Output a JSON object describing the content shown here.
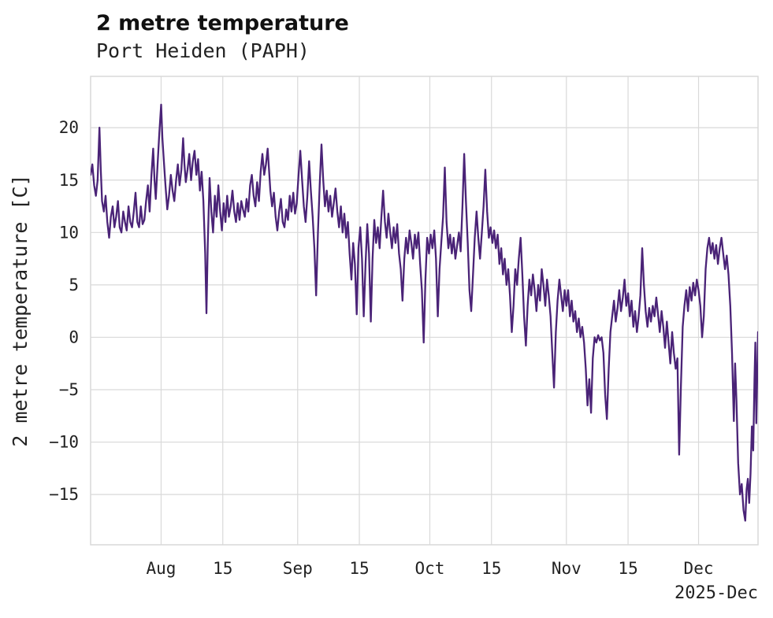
{
  "header": {
    "title": "2 metre temperature",
    "subtitle": "Port Heiden (PAPH)"
  },
  "chart_data": {
    "type": "line",
    "title": "2 metre temperature",
    "subtitle": "Port Heiden (PAPH)",
    "ylabel": "2 metre temperature [C]",
    "xlabel": "",
    "corner_label": "2025-Dec",
    "x_unit": "days since start of series (mid-July 2025)",
    "xlim": [
      0,
      151.5
    ],
    "ylim": [
      -19.8,
      24.9
    ],
    "grid": true,
    "legend": "none",
    "line_color": "#4a2377",
    "grid_color": "#d9d9d9",
    "text_color": "#222222",
    "yticks": [
      {
        "value": 20,
        "label": "20"
      },
      {
        "value": 15,
        "label": "15"
      },
      {
        "value": 10,
        "label": "10"
      },
      {
        "value": 5,
        "label": "5"
      },
      {
        "value": 0,
        "label": "0"
      },
      {
        "value": -5,
        "label": "−5"
      },
      {
        "value": -10,
        "label": "−10"
      },
      {
        "value": -15,
        "label": "−15"
      }
    ],
    "xticks": [
      {
        "value": 16,
        "label": "Aug"
      },
      {
        "value": 30,
        "label": "15"
      },
      {
        "value": 47,
        "label": "Sep"
      },
      {
        "value": 61,
        "label": "15"
      },
      {
        "value": 77,
        "label": "Oct"
      },
      {
        "value": 91,
        "label": "15"
      },
      {
        "value": 108,
        "label": "Nov"
      },
      {
        "value": 122,
        "label": "15"
      },
      {
        "value": 138,
        "label": "Dec"
      }
    ],
    "series": [
      {
        "name": "2 metre temperature [C]",
        "x": [
          0,
          0.4,
          0.8,
          1.2,
          1.6,
          2.0,
          2.3,
          2.6,
          3.0,
          3.4,
          3.8,
          4.2,
          4.6,
          5.0,
          5.4,
          5.8,
          6.2,
          6.6,
          7.0,
          7.4,
          7.8,
          8.2,
          8.6,
          9.0,
          9.4,
          9.8,
          10.2,
          10.6,
          11.0,
          11.4,
          11.8,
          12.2,
          12.6,
          13.0,
          13.4,
          13.8,
          14.2,
          14.5,
          14.8,
          15.2,
          15.6,
          16.0,
          16.3,
          16.6,
          17.0,
          17.4,
          17.8,
          18.2,
          18.6,
          19.0,
          19.4,
          19.8,
          20.2,
          20.6,
          21.0,
          21.3,
          21.6,
          22.0,
          22.4,
          22.8,
          23.2,
          23.6,
          24.0,
          24.4,
          24.8,
          25.2,
          25.6,
          26.0,
          26.3,
          26.6,
          27.0,
          27.4,
          27.8,
          28.2,
          28.6,
          29.0,
          29.4,
          29.8,
          30.2,
          30.6,
          31.0,
          31.4,
          31.8,
          32.2,
          32.6,
          33.0,
          33.4,
          33.8,
          34.2,
          34.6,
          35.0,
          35.4,
          35.8,
          36.2,
          36.6,
          37.0,
          37.4,
          37.8,
          38.2,
          38.6,
          39.0,
          39.4,
          39.8,
          40.2,
          40.5,
          40.8,
          41.2,
          41.6,
          42.0,
          42.4,
          42.8,
          43.2,
          43.6,
          44.0,
          44.4,
          44.8,
          45.2,
          45.6,
          46.0,
          46.4,
          46.8,
          47.2,
          47.6,
          48.0,
          48.4,
          48.8,
          49.2,
          49.6,
          50.0,
          50.4,
          50.8,
          51.2,
          51.6,
          52.0,
          52.4,
          52.8,
          53.2,
          53.6,
          54.0,
          54.4,
          54.8,
          55.2,
          55.6,
          56.0,
          56.4,
          56.8,
          57.2,
          57.6,
          58.0,
          58.4,
          58.8,
          59.2,
          59.6,
          60.0,
          60.4,
          60.8,
          61.2,
          61.6,
          62.0,
          62.4,
          62.8,
          63.2,
          63.6,
          64.0,
          64.4,
          64.8,
          65.2,
          65.6,
          66.0,
          66.4,
          66.8,
          67.2,
          67.6,
          68.0,
          68.4,
          68.8,
          69.2,
          69.6,
          70.0,
          70.4,
          70.8,
          71.2,
          71.6,
          72.0,
          72.4,
          72.8,
          73.2,
          73.6,
          74.0,
          74.4,
          74.8,
          75.2,
          75.6,
          76.0,
          76.4,
          76.8,
          77.2,
          77.6,
          78.0,
          78.4,
          78.8,
          79.2,
          79.6,
          80.0,
          80.4,
          80.8,
          81.2,
          81.6,
          82.0,
          82.4,
          82.8,
          83.2,
          83.6,
          84.0,
          84.4,
          84.8,
          85.2,
          85.6,
          86.0,
          86.4,
          86.8,
          87.2,
          87.6,
          88.0,
          88.4,
          88.8,
          89.2,
          89.6,
          90.0,
          90.4,
          90.8,
          91.2,
          91.6,
          92.0,
          92.4,
          92.8,
          93.2,
          93.6,
          94.0,
          94.4,
          94.8,
          95.2,
          95.6,
          96.0,
          96.4,
          96.8,
          97.2,
          97.6,
          98.0,
          98.4,
          98.8,
          99.2,
          99.6,
          100.0,
          100.4,
          100.8,
          101.2,
          101.6,
          102.0,
          102.4,
          102.8,
          103.2,
          103.6,
          104.0,
          104.4,
          104.8,
          105.2,
          105.6,
          106.0,
          106.4,
          106.8,
          107.2,
          107.6,
          108.0,
          108.4,
          108.8,
          109.2,
          109.6,
          110.0,
          110.4,
          110.8,
          111.2,
          111.6,
          112.0,
          112.4,
          112.8,
          113.2,
          113.6,
          114.0,
          114.4,
          114.8,
          115.2,
          115.6,
          116.0,
          116.4,
          116.8,
          117.2,
          117.6,
          118.0,
          118.4,
          118.8,
          119.2,
          119.6,
          120.0,
          120.4,
          120.8,
          121.2,
          121.6,
          122.0,
          122.4,
          122.8,
          123.2,
          123.6,
          124.0,
          124.4,
          124.8,
          125.2,
          125.6,
          126.0,
          126.4,
          126.8,
          127.2,
          127.6,
          128.0,
          128.4,
          128.8,
          129.2,
          129.6,
          130.0,
          130.4,
          130.8,
          131.2,
          131.6,
          132.0,
          132.4,
          132.8,
          133.2,
          133.6,
          134.0,
          134.4,
          134.8,
          135.2,
          135.6,
          136.0,
          136.4,
          136.8,
          137.2,
          137.6,
          138.0,
          138.4,
          138.8,
          139.2,
          139.6,
          140.0,
          140.4,
          140.8,
          141.2,
          141.6,
          142.0,
          142.4,
          142.8,
          143.2,
          143.6,
          144.0,
          144.4,
          144.8,
          145.2,
          145.6,
          146.0,
          146.3,
          146.6,
          147.0,
          147.4,
          147.8,
          148.2,
          148.6,
          148.9,
          149.2,
          149.5,
          149.8,
          150.1,
          150.4,
          150.7,
          150.9,
          151.1,
          151.3,
          151.5
        ],
        "y": [
          15.5,
          16.5,
          14.5,
          13.5,
          15.0,
          20.0,
          16.0,
          13.0,
          12.0,
          13.5,
          11.0,
          9.5,
          11.5,
          12.5,
          10.5,
          11.5,
          13.0,
          10.5,
          10.0,
          12.0,
          11.0,
          10.2,
          12.5,
          11.0,
          10.5,
          12.0,
          13.8,
          11.0,
          10.5,
          12.5,
          10.8,
          11.2,
          13.0,
          14.5,
          12.0,
          15.5,
          18.0,
          15.0,
          13.2,
          16.5,
          19.5,
          22.2,
          19.0,
          17.0,
          14.5,
          12.2,
          13.5,
          15.5,
          14.0,
          13.0,
          15.0,
          16.5,
          14.5,
          16.0,
          19.0,
          16.5,
          14.8,
          16.0,
          17.5,
          15.0,
          16.8,
          17.8,
          15.5,
          17.0,
          14.0,
          15.8,
          13.0,
          8.0,
          2.3,
          9.0,
          15.2,
          12.0,
          10.0,
          13.5,
          11.5,
          14.5,
          12.0,
          10.2,
          12.8,
          11.0,
          13.5,
          11.5,
          12.5,
          14.0,
          12.0,
          11.0,
          12.8,
          11.2,
          13.0,
          12.2,
          11.5,
          13.2,
          12.0,
          14.5,
          15.5,
          13.5,
          12.5,
          14.8,
          13.0,
          15.8,
          17.5,
          15.5,
          16.5,
          18.0,
          16.0,
          14.0,
          12.5,
          13.8,
          11.5,
          10.2,
          12.0,
          13.2,
          11.0,
          10.5,
          12.2,
          11.2,
          13.5,
          12.0,
          13.8,
          11.8,
          12.8,
          15.5,
          17.8,
          15.0,
          12.5,
          11.0,
          13.5,
          16.8,
          14.0,
          11.5,
          8.5,
          4.0,
          10.0,
          14.5,
          18.4,
          15.0,
          12.5,
          14.0,
          12.0,
          13.5,
          11.5,
          12.8,
          14.2,
          12.0,
          10.5,
          12.5,
          10.0,
          11.8,
          9.5,
          11.0,
          8.0,
          5.5,
          9.0,
          7.0,
          2.2,
          8.5,
          10.5,
          7.5,
          2.0,
          7.0,
          10.8,
          8.0,
          1.5,
          7.5,
          11.2,
          9.0,
          10.5,
          8.5,
          11.5,
          14.0,
          11.0,
          9.5,
          11.8,
          10.0,
          8.5,
          10.5,
          9.0,
          10.8,
          8.0,
          6.5,
          3.5,
          7.5,
          9.5,
          8.0,
          10.2,
          9.0,
          7.5,
          9.8,
          8.5,
          10.0,
          7.0,
          4.5,
          -0.5,
          5.5,
          9.5,
          8.0,
          9.8,
          8.5,
          10.2,
          7.5,
          2.0,
          6.5,
          9.0,
          11.5,
          16.2,
          11.0,
          8.5,
          9.8,
          8.0,
          9.5,
          7.5,
          8.8,
          10.0,
          8.2,
          12.5,
          17.5,
          13.0,
          9.0,
          4.5,
          2.5,
          6.0,
          9.5,
          12.0,
          9.5,
          7.5,
          10.0,
          12.5,
          16.0,
          12.0,
          9.5,
          10.5,
          9.0,
          10.2,
          8.5,
          9.8,
          7.0,
          8.5,
          6.0,
          7.5,
          5.0,
          6.5,
          4.0,
          0.5,
          3.0,
          6.5,
          5.0,
          7.5,
          9.5,
          6.0,
          2.0,
          -0.8,
          3.0,
          5.5,
          4.0,
          6.0,
          4.5,
          2.5,
          5.0,
          3.5,
          6.5,
          5.0,
          3.0,
          5.5,
          4.0,
          2.0,
          -1.5,
          -4.8,
          0.5,
          3.5,
          5.5,
          4.0,
          2.5,
          4.5,
          3.0,
          4.5,
          2.0,
          3.5,
          1.5,
          2.5,
          0.5,
          1.8,
          0.0,
          1.0,
          -0.5,
          -3.0,
          -6.5,
          -4.0,
          -7.2,
          -2.0,
          0.0,
          -0.5,
          0.2,
          -0.3,
          0.0,
          -1.5,
          -5.5,
          -7.8,
          -3.0,
          0.5,
          2.0,
          3.5,
          1.5,
          2.8,
          4.5,
          2.5,
          3.8,
          5.5,
          3.0,
          4.2,
          2.0,
          3.5,
          1.0,
          2.5,
          0.5,
          2.0,
          4.0,
          8.5,
          5.0,
          2.5,
          1.0,
          2.8,
          1.5,
          3.0,
          2.0,
          3.8,
          2.2,
          0.5,
          2.5,
          1.0,
          -1.0,
          1.5,
          -0.5,
          -2.5,
          0.5,
          -1.5,
          -3.0,
          -2.0,
          -11.2,
          -4.5,
          1.0,
          3.0,
          4.5,
          2.5,
          4.8,
          3.5,
          5.2,
          4.0,
          5.5,
          4.5,
          3.0,
          0.0,
          2.0,
          6.5,
          8.5,
          9.5,
          8.0,
          9.0,
          7.5,
          8.8,
          7.0,
          8.5,
          9.5,
          8.0,
          6.5,
          7.8,
          6.0,
          3.0,
          -1.5,
          -8.0,
          -2.5,
          -6.0,
          -12.0,
          -15.0,
          -14.0,
          -16.5,
          -17.5,
          -14.5,
          -13.5,
          -15.8,
          -13.0,
          -8.5,
          -10.8,
          -4.0,
          -0.5,
          -8.2,
          -4.0,
          0.5
        ]
      }
    ]
  }
}
